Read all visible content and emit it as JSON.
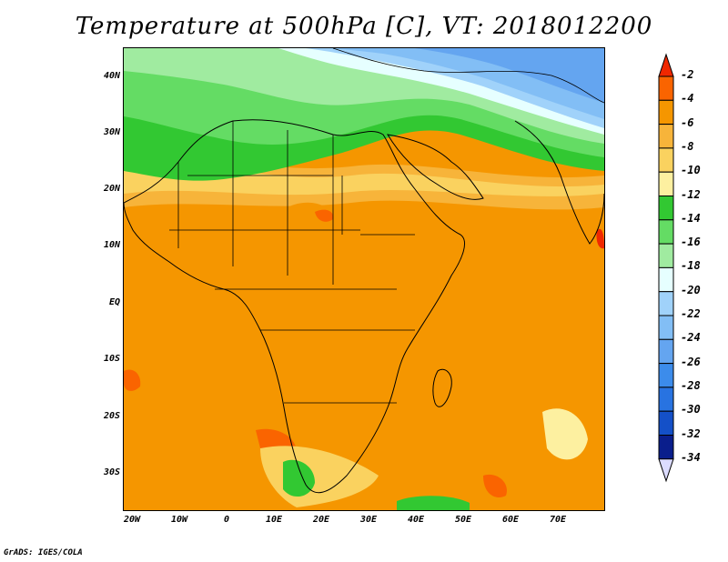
{
  "title": "Temperature at 500hPa [C], VT: 2018012200",
  "credit": "GrADS: IGES/COLA",
  "axes": {
    "lat_labels": [
      "40N",
      "30N",
      "20N",
      "10N",
      "EQ",
      "10S",
      "20S",
      "30S"
    ],
    "lon_labels": [
      "20W",
      "10W",
      "0",
      "10E",
      "20E",
      "30E",
      "40E",
      "50E",
      "60E",
      "70E"
    ]
  },
  "colorbar": {
    "levels": [
      "-2",
      "-4",
      "-6",
      "-8",
      "-10",
      "-12",
      "-14",
      "-16",
      "-18",
      "-20",
      "-22",
      "-24",
      "-26",
      "-28",
      "-30",
      "-32",
      "-34"
    ],
    "colors": [
      "#f02800",
      "#fa6400",
      "#f59600",
      "#f7b43a",
      "#fad25f",
      "#fdf0a0",
      "#32c832",
      "#64dc64",
      "#a0eba0",
      "#e6ffff",
      "#a0d2fa",
      "#82bef5",
      "#64a5f0",
      "#3c8ceb",
      "#2873e1",
      "#1450c8",
      "#0a1e8c",
      "#dcdcff"
    ]
  }
}
